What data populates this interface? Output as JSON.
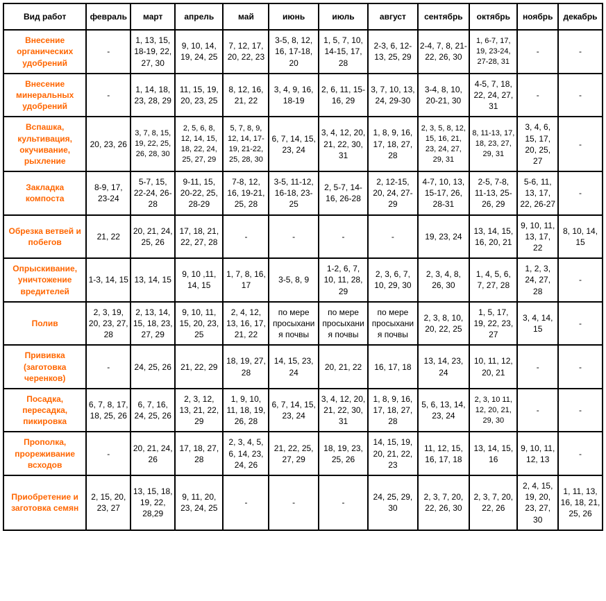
{
  "table": {
    "accent_color": "#ff6600",
    "border_color": "#000000",
    "background_color": "#ffffff",
    "font_family": "Arial",
    "header_fontsize": 12,
    "cell_fontsize": 12,
    "columns": [
      "Вид работ",
      "февраль",
      "март",
      "апрель",
      "май",
      "июнь",
      "июль",
      "август",
      "сентябрь",
      "октябрь",
      "ноябрь",
      "декабрь"
    ],
    "rows": [
      {
        "label": "Внесение органических удобрений",
        "cells": [
          "-",
          "1, 13, 15, 18-19, 22, 27, 30",
          "9, 10, 14, 19, 24, 25",
          "7, 12, 17, 20, 22, 23",
          "3-5, 8, 12, 16, 17-18, 20",
          "1, 5, 7, 10, 14-15, 17, 28",
          "2-3, 6, 12-13, 25, 29",
          "2-4, 7, 8, 21-22, 26, 30",
          "1, 6-7, 17, 19, 23-24, 27-28, 31",
          "-",
          "-"
        ]
      },
      {
        "label": "Внесение минеральных удобрений",
        "cells": [
          "-",
          "1, 14, 18, 23, 28, 29",
          "11, 15, 19, 20, 23, 25",
          "8, 12, 16, 21, 22",
          "3, 4, 9, 16, 18-19",
          "2, 6, 11, 15-16, 29",
          "3, 7, 10, 13, 24, 29-30",
          "3-4, 8, 10, 20-21, 30",
          "4-5, 7, 18, 22, 24, 27, 31",
          "-",
          "-"
        ]
      },
      {
        "label": "Вспашка, культивация, окучивание, рыхление",
        "cells": [
          "20, 23, 26",
          "3, 7, 8, 15, 19, 22, 25, 26, 28, 30",
          "2, 5, 6, 8, 12, 14, 15, 18, 22, 24, 25, 27, 29",
          "5, 7, 8, 9, 12, 14, 17-19, 21-22, 25, 28, 30",
          "6, 7, 14, 15, 23, 24",
          "3, 4, 12, 20, 21, 22, 30, 31",
          "1, 8, 9, 16, 17, 18, 27, 28",
          "2, 3, 5, 8, 12, 15, 16, 21, 23, 24, 27, 29, 31",
          "8, 11-13, 17, 18, 23, 27, 29, 31",
          "3, 4, 6, 15, 17, 20, 25, 27",
          "-"
        ]
      },
      {
        "label": "Закладка компоста",
        "cells": [
          "8-9, 17, 23-24",
          "5-7, 15, 22-24, 26-28",
          "9-11, 15, 20-22, 25, 28-29",
          "7-8, 12, 16, 19-21, 25, 28",
          "3-5, 11-12, 16-18, 23-25",
          "2, 5-7, 14-16, 26-28",
          "2, 12-15, 20, 24, 27-29",
          "4-7, 10, 13, 15-17, 26, 28-31",
          "2-5, 7-8, 11-13, 25-26, 29",
          "5-6, 11, 13, 17, 22, 26-27",
          "-"
        ]
      },
      {
        "label": "Обрезка ветвей и побегов",
        "cells": [
          "21, 22",
          "20, 21, 24, 25, 26",
          "17, 18, 21, 22, 27, 28",
          "-",
          "-",
          "-",
          "-",
          "19, 23, 24",
          "13, 14, 15, 16, 20, 21",
          "9, 10, 11, 13, 17, 22",
          "8, 10, 14, 15"
        ]
      },
      {
        "label": "Опрыскивание, уничтожение вредителей",
        "cells": [
          "1-3, 14, 15",
          "13, 14, 15",
          "9, 10 ,11, 14, 15",
          "1, 7, 8, 16, 17",
          "3-5, 8, 9",
          "1-2, 6, 7, 10, 11, 28, 29",
          "2, 3, 6, 7, 10, 29, 30",
          "2, 3, 4, 8, 26, 30",
          "1, 4, 5, 6, 7, 27, 28",
          "1, 2, 3, 24, 27, 28",
          "-"
        ]
      },
      {
        "label": "Полив",
        "cells": [
          "2, 3, 19, 20, 23, 27, 28",
          "2, 13, 14, 15, 18, 23, 27, 29",
          "9, 10, 11, 15, 20, 23, 25",
          "2, 4, 12, 13, 16, 17, 21, 22",
          "по мере просыхания почвы",
          "по мере просыхания почвы",
          "по мере просыхания почвы",
          "2, 3, 8, 10, 20, 22, 25",
          "1, 5, 17, 19, 22, 23, 27",
          "3, 4, 14, 15",
          "-"
        ]
      },
      {
        "label": "Прививка (заготовка черенков)",
        "cells": [
          "-",
          "24, 25, 26",
          "21, 22, 29",
          "18, 19, 27, 28",
          "14, 15, 23, 24",
          "20, 21, 22",
          "16, 17, 18",
          "13, 14, 23, 24",
          "10, 11, 12, 20, 21",
          "-",
          "-"
        ]
      },
      {
        "label": "Посадка, пересадка, пикировка",
        "cells": [
          "6, 7, 8, 17, 18, 25, 26",
          "6, 7, 16, 24, 25, 26",
          "2, 3, 12, 13, 21, 22, 29",
          "1, 9, 10, 11, 18, 19, 26, 28",
          "6, 7, 14, 15, 23, 24",
          "3, 4, 12, 20, 21, 22, 30, 31",
          "1, 8, 9, 16, 17, 18, 27, 28",
          "5, 6, 13, 14, 23, 24",
          "2, 3, 10 11, 12, 20, 21, 29, 30",
          "-",
          "-"
        ]
      },
      {
        "label": "Прополка, прореживание всходов",
        "cells": [
          "-",
          "20, 21, 24, 26",
          "17, 18, 27, 28",
          "2, 3, 4, 5, 6, 14, 23, 24, 26",
          "21, 22, 25, 27, 29",
          "18, 19, 23, 25, 26",
          "14, 15, 19, 20, 21, 22, 23",
          "11, 12, 15, 16, 17, 18",
          "13, 14, 15, 16",
          "9, 10, 11, 12, 13",
          "-"
        ]
      },
      {
        "label": "Приобретение и заготовка семян",
        "cells": [
          "2, 15, 20, 23, 27",
          "13, 15, 18, 19, 22, 28,29",
          "9, 11, 20, 23, 24, 25",
          "-",
          "-",
          "-",
          "24, 25, 29, 30",
          "2, 3, 7, 20, 22, 26, 30",
          "2, 3, 7, 20, 22, 26",
          "2, 4, 15, 19, 20, 23, 27, 30",
          "1, 11, 13, 16, 18, 21, 25, 26"
        ]
      }
    ]
  }
}
